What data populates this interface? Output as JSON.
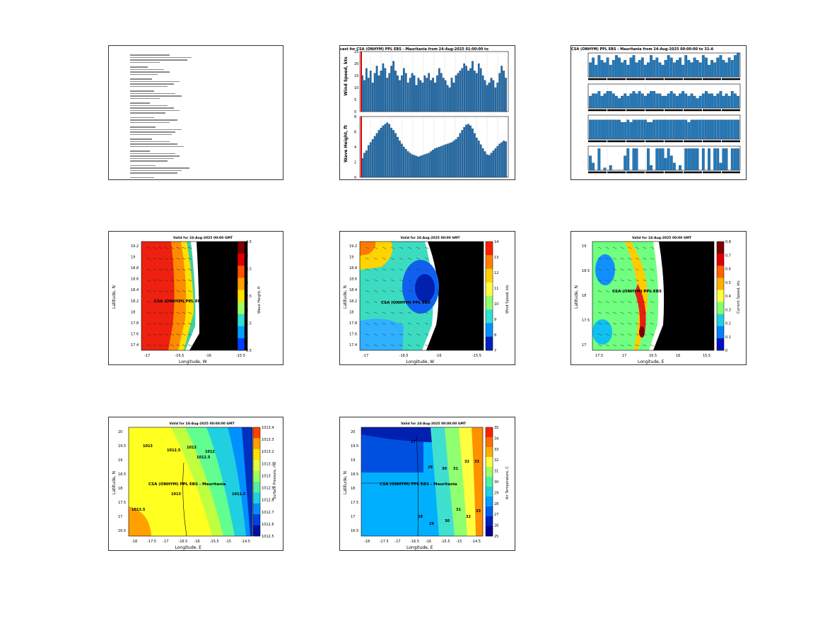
{
  "panels": {
    "p1": {
      "kind": "document"
    },
    "p2": {
      "title": "cast for CSA (ONHYM) PPL EBS - Mauritania from 24-Aug-2025 01:00:00 to",
      "top": {
        "ylabel": "Wind Speed, kts",
        "yticks": [
          "0",
          "5",
          "10",
          "15",
          "20",
          "25"
        ]
      },
      "bottom": {
        "ylabel": "Wave Height, ft",
        "yticks": [
          "0",
          "2",
          "4",
          "6",
          "8"
        ]
      }
    },
    "p3": {
      "title": "CSA (ONHYM) PPL EBS - Mauritania from 24-Aug-2025 00:00:00 to 31-A"
    },
    "p4": {
      "title": "Valid for 24-Aug-2025 00:00 GMT",
      "xlabel": "Longitude, W",
      "ylabel": "Latitude, N",
      "site": "CSA (ONHYM) PPL EBS",
      "xticks": [
        "-17",
        "-16.5",
        "-16",
        "-15.5"
      ],
      "yticks": [
        "19.2",
        "19",
        "18.8",
        "18.6",
        "18.4",
        "18.2",
        "18",
        "17.8",
        "17.6",
        "17.4"
      ],
      "cbar": [
        "4.5",
        "4",
        "3.5",
        "3",
        "2.5",
        "2",
        "1.5",
        "1",
        "0.5"
      ],
      "cbar_label": "Wave Height, ft"
    },
    "p5": {
      "title": "Valid for 24-Aug-2025 00:00 GMT",
      "xlabel": "Longitude, W",
      "ylabel": "Latitude, N",
      "site": "CSA (ONHYM) PPL EBS",
      "xticks": [
        "-17",
        "-16.5",
        "-16",
        "-15.5"
      ],
      "yticks": [
        "19.2",
        "19",
        "18.8",
        "18.6",
        "18.4",
        "18.2",
        "18",
        "17.8",
        "17.6",
        "17.4"
      ],
      "cbar": [
        "14",
        "13",
        "12",
        "11",
        "10",
        "9",
        "8",
        "7"
      ],
      "cbar_label": "Wind Speed, kts"
    },
    "p6": {
      "title": "Valid for 24-Aug-2025 00:00 GMT",
      "xlabel": "Longitude, E",
      "ylabel": "Latitude, N",
      "site": "CSA (ONHYM) PPL EBS",
      "xticks": [
        "17.5",
        "17",
        "16.5",
        "16",
        "15.5"
      ],
      "yticks": [
        "19",
        "18.5",
        "18",
        "17.5",
        "17"
      ],
      "cbar": [
        "0.8",
        "0.7",
        "0.6",
        "0.5",
        "0.4",
        "0.3",
        "0.2",
        "0.1",
        "0"
      ],
      "cbar_label": "Current Speed, kts"
    },
    "p7": {
      "title": "Valid for 24-Aug-2025 00:00:00 GMT",
      "xlabel": "Longitude, E",
      "ylabel": "Latitude, N",
      "site": "CSA (ONHYM) PPL EBS - Mauritania",
      "xticks": [
        "-18",
        "-17.5",
        "-17",
        "-16.5",
        "-16",
        "-15.5",
        "-15",
        "-14.5"
      ],
      "yticks": [
        "20",
        "19.5",
        "19",
        "18.5",
        "18",
        "17.5",
        "17",
        "16.5"
      ],
      "cbar": [
        "1013.4",
        "1013.3",
        "1013.2",
        "1013.1",
        "1013",
        "1012.9",
        "1012.8",
        "1012.7",
        "1012.6",
        "1012.5"
      ],
      "cbar_label": "Surface Pressure, mb",
      "contour_labels": [
        "1013",
        "1012.5",
        "1013",
        "1012.5",
        "1013",
        "1013.5",
        "1012",
        "1011.5"
      ]
    },
    "p8": {
      "title": "Valid for 24-Aug-2025 00:00:00 GMT",
      "xlabel": "Longitude, E",
      "ylabel": "Latitude, N",
      "site": "CSA (ONHYM) PPL EBS - Mauritania",
      "xticks": [
        "-18",
        "-17.5",
        "-17",
        "-16.5",
        "-16",
        "-15.5",
        "-15",
        "-14.5"
      ],
      "yticks": [
        "20",
        "19.5",
        "19",
        "18.5",
        "18",
        "17.5",
        "17",
        "16.5"
      ],
      "cbar": [
        "35",
        "34",
        "33",
        "32",
        "31",
        "30",
        "29",
        "28",
        "27",
        "26",
        "25"
      ],
      "cbar_label": "Air Temperature, C",
      "contour_labels": [
        "27",
        "29",
        "30",
        "31",
        "32",
        "33",
        "28",
        "29",
        "30",
        "31",
        "32",
        "33"
      ]
    }
  },
  "chart_data": [
    {
      "type": "bar",
      "panel": "p2-top",
      "ylabel": "Wind Speed, kts",
      "ylim": [
        0,
        25
      ],
      "values": [
        15,
        13,
        18,
        14,
        17,
        12,
        16,
        19,
        15,
        17,
        20,
        18,
        14,
        16,
        19,
        21,
        17,
        15,
        13,
        15,
        18,
        16,
        12,
        14,
        16,
        15,
        11,
        14,
        13,
        12,
        15,
        14,
        16,
        13,
        14,
        12,
        15,
        18,
        16,
        14,
        13,
        11,
        10,
        14,
        12,
        15,
        16,
        17,
        18,
        20,
        19,
        17,
        18,
        21,
        17,
        16,
        20,
        18,
        15,
        13,
        11,
        12,
        14,
        13,
        10,
        12,
        16,
        19,
        17,
        14
      ]
    },
    {
      "type": "bar",
      "panel": "p2-bottom",
      "ylabel": "Wave Height, ft",
      "ylim": [
        0,
        8
      ],
      "values": [
        2.5,
        3.2,
        3.5,
        4.2,
        4.6,
        5,
        5.4,
        5.8,
        6.2,
        6.5,
        6.8,
        7,
        7.2,
        7,
        6.5,
        6.2,
        5.8,
        5.3,
        4.8,
        4.4,
        4,
        3.7,
        3.4,
        3.2,
        3,
        2.9,
        2.8,
        2.7,
        2.8,
        2.9,
        3,
        3.1,
        3.2,
        3.4,
        3.6,
        3.8,
        3.9,
        4,
        4.1,
        4.2,
        4.3,
        4.4,
        4.5,
        4.6,
        4.8,
        5,
        5.3,
        5.8,
        6.2,
        6.6,
        6.9,
        7,
        6.8,
        6.4,
        5.8,
        5.2,
        4.8,
        4.3,
        3.8,
        3.4,
        3,
        2.9,
        3.2,
        3.5,
        3.8,
        4.1,
        4.4,
        4.6,
        4.8,
        4.7
      ]
    },
    {
      "type": "bar",
      "panel": "p3-row1",
      "values": [
        0.6,
        0.8,
        0.5,
        0.9,
        0.7,
        0.6,
        0.8,
        0.5,
        0.7,
        0.9,
        0.8,
        0.6,
        0.7,
        0.5,
        0.8,
        0.9,
        0.6,
        0.7,
        0.8,
        0.5,
        0.6,
        0.9,
        0.7,
        0.8,
        0.6,
        0.5,
        0.7,
        0.9,
        0.8,
        0.6,
        0.7,
        0.8,
        0.5,
        0.9,
        0.7,
        0.6,
        0.8,
        0.7,
        0.6,
        0.9,
        0.8,
        0.5,
        0.7,
        0.6,
        0.8,
        0.9,
        0.7,
        0.6,
        0.8,
        0.7,
        0.9,
        1
      ]
    },
    {
      "type": "bar",
      "panel": "p3-row2",
      "values": [
        0.5,
        0.6,
        0.6,
        0.7,
        0.5,
        0.6,
        0.7,
        0.7,
        0.6,
        0.5,
        0.4,
        0.5,
        0.6,
        0.5,
        0.6,
        0.7,
        0.6,
        0.7,
        0.6,
        0.5,
        0.6,
        0.7,
        0.7,
        0.6,
        0.6,
        0.5,
        0.5,
        0.6,
        0.7,
        0.6,
        0.5,
        0.6,
        0.7,
        0.6,
        0.5,
        0.6,
        0.5,
        0.4,
        0.5,
        0.6,
        0.7,
        0.6,
        0.6,
        0.5,
        0.6,
        0.7,
        0.5,
        0.6,
        0.5,
        0.7,
        0.6,
        0.5
      ]
    },
    {
      "type": "bar",
      "panel": "p3-row3",
      "values": [
        0.8,
        0.8,
        0.8,
        0.8,
        0.8,
        0.8,
        0.8,
        0.8,
        0.8,
        0.8,
        0.8,
        0.7,
        0.7,
        0.8,
        0.7,
        0.8,
        0.8,
        0.8,
        0.8,
        0.8,
        0.7,
        0.7,
        0.8,
        0.8,
        0.8,
        0.8,
        0.8,
        0.8,
        0.8,
        0.8,
        0.8,
        0.8,
        0.8,
        0.8,
        0.7,
        0.8,
        0.8,
        0.8,
        0.8,
        0.8,
        0.8,
        0.8,
        0.8,
        0.8,
        0.8,
        0.8,
        0.8,
        0.8,
        0.8,
        0.8,
        0.8,
        0.8
      ]
    },
    {
      "type": "bar",
      "panel": "p3-row4",
      "values": [
        0.6,
        0.3,
        0,
        0.9,
        0,
        0.1,
        0,
        0.2,
        0,
        0,
        0,
        0,
        0.6,
        0.9,
        0,
        0.9,
        0.9,
        0,
        0,
        0,
        0.9,
        0.2,
        0,
        0.9,
        0.9,
        0.9,
        0.5,
        0.9,
        0.6,
        0.3,
        0,
        0.2,
        0,
        0.9,
        0.9,
        0.9,
        0.9,
        0.9,
        0,
        0.9,
        0,
        0.9,
        0,
        0.9,
        0.9,
        0.3,
        0.9,
        0.9,
        0,
        0.9,
        0.9,
        0.9
      ]
    },
    {
      "type": "heatmap",
      "panel": "p4",
      "xlabel": "Longitude, W",
      "ylabel": "Latitude, N",
      "zlim": [
        0.5,
        4.5
      ]
    },
    {
      "type": "heatmap",
      "panel": "p5",
      "xlabel": "Longitude, W",
      "ylabel": "Latitude, N",
      "zlim": [
        7,
        14
      ]
    },
    {
      "type": "heatmap",
      "panel": "p6",
      "xlabel": "Longitude, E",
      "ylabel": "Latitude, N",
      "zlim": [
        0,
        0.8
      ]
    },
    {
      "type": "heatmap",
      "panel": "p7",
      "xlabel": "Longitude, E",
      "ylabel": "Latitude, N",
      "zlim": [
        1012.5,
        1013.4
      ]
    },
    {
      "type": "heatmap",
      "panel": "p8",
      "xlabel": "Longitude, E",
      "ylabel": "Latitude, N",
      "zlim": [
        25,
        35
      ]
    }
  ]
}
